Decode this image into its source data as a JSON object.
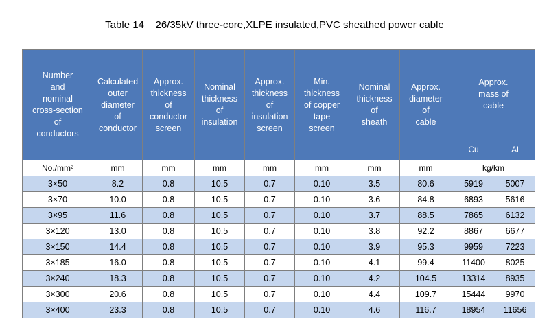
{
  "title": "Table 14    26/35kV three-core,XLPE insulated,PVC sheathed power cable",
  "headers": [
    [
      "Number",
      "and",
      "nominal",
      "cross-section",
      "of",
      "conductors"
    ],
    [
      "Calculated",
      "outer",
      "diameter",
      "of",
      "conductor"
    ],
    [
      "Approx.",
      "thickness",
      "of",
      "conductor",
      "screen"
    ],
    [
      "Nominal",
      "thickness",
      "of",
      "insulation"
    ],
    [
      "Approx.",
      "thickness",
      "of",
      "insulation",
      "screen"
    ],
    [
      "Min.",
      "thickness",
      "of copper",
      "tape",
      "screen"
    ],
    [
      "Nominal",
      "thickness",
      "of",
      "sheath"
    ],
    [
      "Approx.",
      "diameter",
      "of",
      "cable"
    ],
    [
      "Approx.",
      "mass of",
      "cable"
    ]
  ],
  "mass_sub": [
    "Cu",
    "Al"
  ],
  "units": [
    "No./mm²",
    "mm",
    "mm",
    "mm",
    "mm",
    "mm",
    "mm",
    "mm",
    "kg/km"
  ],
  "rows": [
    [
      "3×50",
      "8.2",
      "0.8",
      "10.5",
      "0.7",
      "0.10",
      "3.5",
      "80.6",
      "5919",
      "5007"
    ],
    [
      "3×70",
      "10.0",
      "0.8",
      "10.5",
      "0.7",
      "0.10",
      "3.6",
      "84.8",
      "6893",
      "5616"
    ],
    [
      "3×95",
      "11.6",
      "0.8",
      "10.5",
      "0.7",
      "0.10",
      "3.7",
      "88.5",
      "7865",
      "6132"
    ],
    [
      "3×120",
      "13.0",
      "0.8",
      "10.5",
      "0.7",
      "0.10",
      "3.8",
      "92.2",
      "8867",
      "6677"
    ],
    [
      "3×150",
      "14.4",
      "0.8",
      "10.5",
      "0.7",
      "0.10",
      "3.9",
      "95.3",
      "9959",
      "7223"
    ],
    [
      "3×185",
      "16.0",
      "0.8",
      "10.5",
      "0.7",
      "0.10",
      "4.1",
      "99.4",
      "11400",
      "8025"
    ],
    [
      "3×240",
      "18.3",
      "0.8",
      "10.5",
      "0.7",
      "0.10",
      "4.2",
      "104.5",
      "13314",
      "8935"
    ],
    [
      "3×300",
      "20.6",
      "0.8",
      "10.5",
      "0.7",
      "0.10",
      "4.4",
      "109.7",
      "15444",
      "9970"
    ],
    [
      "3×400",
      "23.3",
      "0.8",
      "10.5",
      "0.7",
      "0.10",
      "4.6",
      "116.7",
      "18954",
      "11656"
    ]
  ]
}
